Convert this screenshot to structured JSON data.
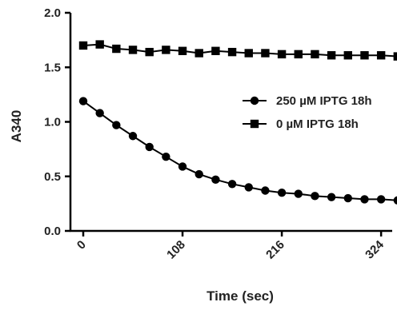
{
  "chart_data": {
    "type": "line",
    "title": "",
    "xlabel": "Time (sec)",
    "ylabel": "A340",
    "xlim": [
      0,
      350
    ],
    "ylim": [
      0,
      2.0
    ],
    "x_ticks": [
      0,
      108,
      216,
      324
    ],
    "x_tick_labels": [
      "0",
      "108",
      "216",
      "324"
    ],
    "y_ticks": [
      0.0,
      0.5,
      1.0,
      1.5,
      2.0
    ],
    "y_tick_labels": [
      "0.0",
      "0.5",
      "1.0",
      "1.5",
      "2.0"
    ],
    "grid": false,
    "legend_position": "right",
    "series": [
      {
        "name": "250 µM IPTG 18h",
        "marker": "circle",
        "color": "#000000",
        "x": [
          0,
          18,
          36,
          54,
          72,
          90,
          108,
          126,
          144,
          162,
          180,
          198,
          216,
          234,
          252,
          270,
          288,
          306,
          324,
          342
        ],
        "y": [
          1.19,
          1.08,
          0.97,
          0.87,
          0.77,
          0.68,
          0.59,
          0.52,
          0.47,
          0.43,
          0.4,
          0.37,
          0.35,
          0.34,
          0.32,
          0.31,
          0.3,
          0.29,
          0.29,
          0.28
        ]
      },
      {
        "name": "0 µM IPTG 18h",
        "marker": "square",
        "color": "#000000",
        "x": [
          0,
          18,
          36,
          54,
          72,
          90,
          108,
          126,
          144,
          162,
          180,
          198,
          216,
          234,
          252,
          270,
          288,
          306,
          324,
          342
        ],
        "y": [
          1.7,
          1.71,
          1.67,
          1.66,
          1.64,
          1.66,
          1.65,
          1.63,
          1.65,
          1.64,
          1.63,
          1.63,
          1.62,
          1.62,
          1.62,
          1.61,
          1.61,
          1.61,
          1.61,
          1.6
        ]
      }
    ]
  }
}
